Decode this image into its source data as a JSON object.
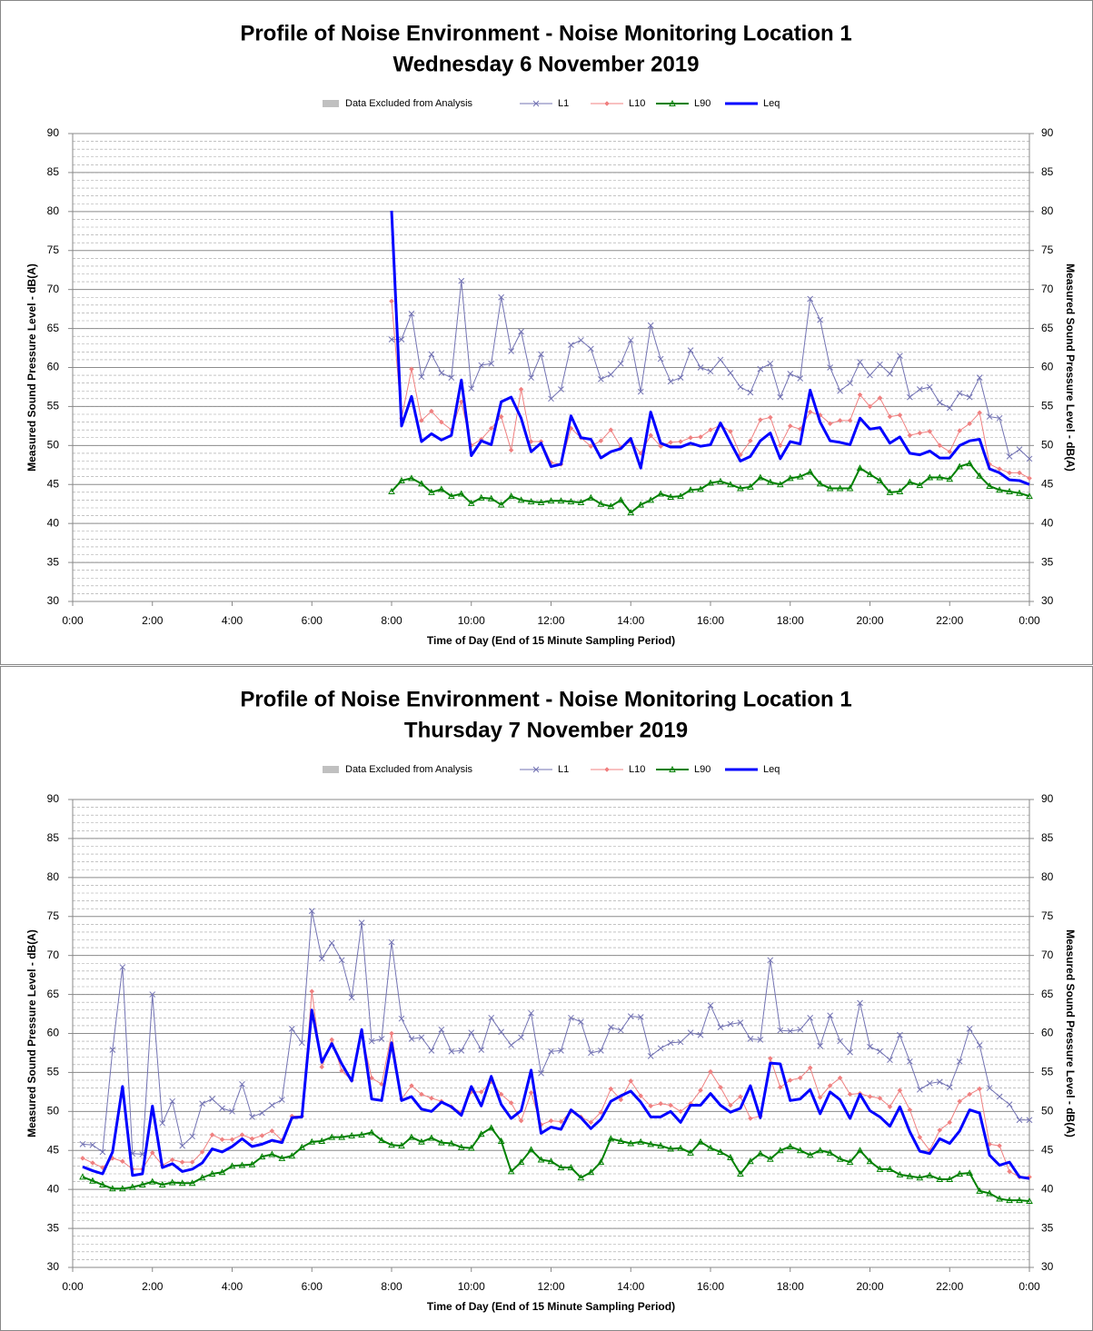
{
  "chart_data": [
    {
      "type": "line",
      "title": "Profile of Noise Environment - Noise Monitoring Location 1",
      "subtitle": "Wednesday 6 November 2019",
      "x_label": "Time of Day (End of 15 Minute Sampling Period)",
      "y_label": "Measured Sound Pressure Level - dB(A)",
      "y2_label": "Measured Sound Pressure Level - dB(A)",
      "excluded": {
        "name": "Data Excluded from Analysis",
        "color": "#c0c0c0"
      },
      "xlim": [
        0,
        24
      ],
      "xticks": [
        {
          "value": 0,
          "label": "0:00"
        },
        {
          "value": 2,
          "label": "2:00"
        },
        {
          "value": 4,
          "label": "4:00"
        },
        {
          "value": 6,
          "label": "6:00"
        },
        {
          "value": 8,
          "label": "8:00"
        },
        {
          "value": 10,
          "label": "10:00"
        },
        {
          "value": 12,
          "label": "12:00"
        },
        {
          "value": 14,
          "label": "14:00"
        },
        {
          "value": 16,
          "label": "16:00"
        },
        {
          "value": 18,
          "label": "18:00"
        },
        {
          "value": 20,
          "label": "20:00"
        },
        {
          "value": 22,
          "label": "22:00"
        },
        {
          "value": 24,
          "label": "0:00"
        }
      ],
      "ylim": [
        30,
        90
      ],
      "yticks": [
        30,
        35,
        40,
        45,
        50,
        55,
        60,
        65,
        70,
        75,
        80,
        85,
        90
      ],
      "y2lim": [
        30,
        90
      ],
      "y2ticks": [
        30,
        35,
        40,
        45,
        50,
        55,
        60,
        65,
        70,
        75,
        80,
        85,
        90
      ],
      "grid": true,
      "minor_grid_step": 1,
      "x": [
        8,
        8.25,
        8.5,
        8.75,
        9,
        9.25,
        9.5,
        9.75,
        10,
        10.25,
        10.5,
        10.75,
        11,
        11.25,
        11.5,
        11.75,
        12,
        12.25,
        12.5,
        12.75,
        13,
        13.25,
        13.5,
        13.75,
        14,
        14.25,
        14.5,
        14.75,
        15,
        15.25,
        15.5,
        15.75,
        16,
        16.25,
        16.5,
        16.75,
        17,
        17.25,
        17.5,
        17.75,
        18,
        18.25,
        18.5,
        18.75,
        19,
        19.25,
        19.5,
        19.75,
        20,
        20.25,
        20.5,
        20.75,
        21,
        21.25,
        21.5,
        21.75,
        22,
        22.25,
        22.5,
        22.75,
        23,
        23.25,
        23.5,
        23.75,
        24
      ],
      "series": [
        {
          "name": "L1",
          "color": "#7373b3",
          "marker": "x",
          "line_width": 1,
          "values": [
            63.6,
            63.6,
            66.9,
            58.8,
            61.7,
            59.3,
            58.7,
            71.1,
            57.3,
            60.3,
            60.5,
            69.0,
            62.1,
            64.6,
            58.7,
            61.7,
            56.0,
            57.2,
            62.9,
            63.5,
            62.4,
            58.5,
            59.1,
            60.5,
            63.5,
            56.9,
            65.4,
            61.1,
            58.2,
            58.7,
            62.2,
            60.0,
            59.5,
            61.0,
            59.3,
            57.5,
            56.8,
            59.8,
            60.5,
            56.2,
            59.2,
            58.6,
            68.8,
            66.1,
            60.0,
            57.0,
            58.0,
            60.7,
            59.0,
            60.4,
            59.2,
            61.5,
            56.2,
            57.2,
            57.5,
            55.5,
            54.8,
            56.7,
            56.2,
            58.7,
            53.7,
            53.5,
            48.6,
            49.5,
            48.3
          ]
        },
        {
          "name": "L10",
          "color": "#f08080",
          "marker": "diamond",
          "line_width": 1,
          "values": [
            68.5,
            53.5,
            59.8,
            53.2,
            54.4,
            53.0,
            52.0,
            55.6,
            50.0,
            50.8,
            52.2,
            53.7,
            49.4,
            57.2,
            50.5,
            50.5,
            47.8,
            47.6,
            52.2,
            51.0,
            49.9,
            50.6,
            52.0,
            49.8,
            50.5,
            49.0,
            51.3,
            49.9,
            50.4,
            50.5,
            51.0,
            51.1,
            52.0,
            52.6,
            51.8,
            48.8,
            50.6,
            53.3,
            53.6,
            50.0,
            52.5,
            52.1,
            54.3,
            53.9,
            52.8,
            53.2,
            53.2,
            56.5,
            55.0,
            56.1,
            53.7,
            53.9,
            51.3,
            51.6,
            51.8,
            50.0,
            49.2,
            51.9,
            52.8,
            54.2,
            47.6,
            47.0,
            46.5,
            46.5,
            45.8
          ]
        },
        {
          "name": "L90",
          "color": "#008000",
          "marker": "triangle",
          "line_width": 2,
          "values": [
            44.1,
            45.5,
            45.8,
            45.1,
            44.0,
            44.4,
            43.5,
            43.8,
            42.6,
            43.3,
            43.2,
            42.4,
            43.5,
            43.0,
            42.8,
            42.7,
            42.9,
            42.9,
            42.8,
            42.7,
            43.3,
            42.5,
            42.2,
            43.0,
            41.4,
            42.4,
            43.0,
            43.8,
            43.4,
            43.5,
            44.3,
            44.4,
            45.2,
            45.4,
            45.0,
            44.5,
            44.7,
            45.9,
            45.3,
            45.0,
            45.8,
            46.0,
            46.6,
            45.1,
            44.5,
            44.5,
            44.5,
            47.1,
            46.3,
            45.5,
            44.0,
            44.1,
            45.3,
            44.9,
            45.9,
            45.9,
            45.7,
            47.3,
            47.7,
            46.1,
            44.8,
            44.3,
            44.1,
            43.9,
            43.5
          ]
        },
        {
          "name": "Leq",
          "color": "#0000ff",
          "marker": "none",
          "line_width": 3,
          "values": [
            80.1,
            52.5,
            56.3,
            50.5,
            51.5,
            50.7,
            51.3,
            58.4,
            48.7,
            50.6,
            50.1,
            55.6,
            56.2,
            53.5,
            49.2,
            50.3,
            47.3,
            47.6,
            53.8,
            51.0,
            50.8,
            48.4,
            49.2,
            49.6,
            50.9,
            47.1,
            54.3,
            50.3,
            49.8,
            49.8,
            50.3,
            49.9,
            50.1,
            52.9,
            50.4,
            48.0,
            48.6,
            50.6,
            51.6,
            48.3,
            50.5,
            50.2,
            57.1,
            53.0,
            50.6,
            50.4,
            50.1,
            53.5,
            52.1,
            52.3,
            50.3,
            51.1,
            49.0,
            48.8,
            49.3,
            48.4,
            48.4,
            50.0,
            50.6,
            50.8,
            47.0,
            46.5,
            45.6,
            45.5,
            45.0
          ]
        }
      ]
    },
    {
      "type": "line",
      "title": "Profile of Noise Environment - Noise Monitoring Location 1",
      "subtitle": "Thursday 7 November 2019",
      "x_label": "Time of Day (End of 15 Minute Sampling Period)",
      "y_label": "Measured Sound Pressure Level - dB(A)",
      "y2_label": "Measured Sound Pressure Level - dB(A)",
      "excluded": {
        "name": "Data Excluded from Analysis",
        "color": "#c0c0c0"
      },
      "xlim": [
        0,
        24
      ],
      "xticks": [
        {
          "value": 0,
          "label": "0:00"
        },
        {
          "value": 2,
          "label": "2:00"
        },
        {
          "value": 4,
          "label": "4:00"
        },
        {
          "value": 6,
          "label": "6:00"
        },
        {
          "value": 8,
          "label": "8:00"
        },
        {
          "value": 10,
          "label": "10:00"
        },
        {
          "value": 12,
          "label": "12:00"
        },
        {
          "value": 14,
          "label": "14:00"
        },
        {
          "value": 16,
          "label": "16:00"
        },
        {
          "value": 18,
          "label": "18:00"
        },
        {
          "value": 20,
          "label": "20:00"
        },
        {
          "value": 22,
          "label": "22:00"
        },
        {
          "value": 24,
          "label": "0:00"
        }
      ],
      "ylim": [
        30,
        90
      ],
      "yticks": [
        30,
        35,
        40,
        45,
        50,
        55,
        60,
        65,
        70,
        75,
        80,
        85,
        90
      ],
      "y2lim": [
        30,
        90
      ],
      "y2ticks": [
        30,
        35,
        40,
        45,
        50,
        55,
        60,
        65,
        70,
        75,
        80,
        85,
        90
      ],
      "grid": true,
      "minor_grid_step": 1,
      "x": [
        0.25,
        0.5,
        0.75,
        1,
        1.25,
        1.5,
        1.75,
        2,
        2.25,
        2.5,
        2.75,
        3,
        3.25,
        3.5,
        3.75,
        4,
        4.25,
        4.5,
        4.75,
        5,
        5.25,
        5.5,
        5.75,
        6,
        6.25,
        6.5,
        6.75,
        7,
        7.25,
        7.5,
        7.75,
        8,
        8.25,
        8.5,
        8.75,
        9,
        9.25,
        9.5,
        9.75,
        10,
        10.25,
        10.5,
        10.75,
        11,
        11.25,
        11.5,
        11.75,
        12,
        12.25,
        12.5,
        12.75,
        13,
        13.25,
        13.5,
        13.75,
        14,
        14.25,
        14.5,
        14.75,
        15,
        15.25,
        15.5,
        15.75,
        16,
        16.25,
        16.5,
        16.75,
        17,
        17.25,
        17.5,
        17.75,
        18,
        18.25,
        18.5,
        18.75,
        19,
        19.25,
        19.5,
        19.75,
        20,
        20.25,
        20.5,
        20.75,
        21,
        21.25,
        21.5,
        21.75,
        22,
        22.25,
        22.5,
        22.75,
        23,
        23.25,
        23.5,
        23.75,
        24
      ],
      "series": [
        {
          "name": "L1",
          "color": "#7373b3",
          "marker": "x",
          "line_width": 1,
          "values": [
            45.8,
            45.7,
            44.8,
            57.9,
            68.5,
            44.6,
            44.5,
            65.0,
            48.5,
            51.3,
            45.6,
            46.8,
            51.0,
            51.6,
            50.4,
            50.0,
            53.5,
            49.3,
            49.8,
            50.8,
            51.5,
            60.6,
            58.8,
            75.7,
            69.6,
            71.6,
            69.4,
            64.6,
            74.2,
            59.0,
            59.3,
            71.7,
            61.9,
            59.3,
            59.5,
            57.8,
            60.5,
            57.7,
            57.8,
            60.1,
            57.9,
            62.0,
            60.2,
            58.5,
            59.5,
            62.6,
            54.9,
            57.7,
            57.8,
            62.0,
            61.5,
            57.5,
            57.8,
            60.8,
            60.4,
            62.2,
            62.1,
            57.1,
            58.1,
            58.8,
            58.9,
            60.1,
            59.8,
            63.6,
            60.8,
            61.2,
            61.4,
            59.3,
            59.2,
            69.4,
            60.4,
            60.3,
            60.5,
            62.0,
            58.4,
            62.3,
            59.0,
            57.6,
            63.9,
            58.3,
            57.7,
            56.6,
            59.8,
            56.4,
            52.8,
            53.6,
            53.8,
            53.1,
            56.4,
            60.6,
            58.5,
            53.0,
            51.9,
            50.9,
            48.9,
            48.9
          ]
        },
        {
          "name": "L10",
          "color": "#f08080",
          "marker": "diamond",
          "line_width": 1,
          "values": [
            44.0,
            43.4,
            42.8,
            44.0,
            43.6,
            42.6,
            42.6,
            44.7,
            43.1,
            43.8,
            43.5,
            43.5,
            44.8,
            47.0,
            46.4,
            46.4,
            47.0,
            46.5,
            46.9,
            47.5,
            46.3,
            49.4,
            49.4,
            65.4,
            55.7,
            59.2,
            55.2,
            54.0,
            60.0,
            54.3,
            53.5,
            60.0,
            51.6,
            53.3,
            52.2,
            51.7,
            51.3,
            50.6,
            49.9,
            52.5,
            52.5,
            53.8,
            52.2,
            51.1,
            48.8,
            52.4,
            48.3,
            48.8,
            48.7,
            50.0,
            49.3,
            48.6,
            49.9,
            52.9,
            51.5,
            53.9,
            52.0,
            50.7,
            51.0,
            50.8,
            50.0,
            51.0,
            52.7,
            55.1,
            53.1,
            50.8,
            51.9,
            49.1,
            49.4,
            56.8,
            53.1,
            54.0,
            54.3,
            55.6,
            51.8,
            53.3,
            54.3,
            52.2,
            52.3,
            51.9,
            51.7,
            50.6,
            52.7,
            50.2,
            46.7,
            45.0,
            47.6,
            48.6,
            51.3,
            52.2,
            52.9,
            45.8,
            45.6,
            42.3,
            41.6,
            41.6
          ]
        },
        {
          "name": "L90",
          "color": "#008000",
          "marker": "triangle",
          "line_width": 2,
          "values": [
            41.6,
            41.1,
            40.6,
            40.1,
            40.1,
            40.3,
            40.6,
            41.0,
            40.6,
            40.9,
            40.8,
            40.8,
            41.5,
            42.0,
            42.2,
            43.0,
            43.1,
            43.2,
            44.2,
            44.5,
            44.0,
            44.3,
            45.4,
            46.1,
            46.2,
            46.7,
            46.7,
            46.9,
            47.0,
            47.3,
            46.3,
            45.7,
            45.6,
            46.7,
            46.1,
            46.6,
            46.0,
            45.9,
            45.4,
            45.3,
            47.1,
            47.9,
            46.2,
            42.3,
            43.5,
            45.1,
            43.8,
            43.6,
            42.8,
            42.8,
            41.5,
            42.2,
            43.5,
            46.5,
            46.2,
            45.9,
            46.1,
            45.8,
            45.6,
            45.2,
            45.3,
            44.7,
            46.1,
            45.3,
            44.8,
            44.1,
            42.0,
            43.6,
            44.6,
            43.9,
            45.0,
            45.5,
            45.0,
            44.4,
            45.0,
            44.7,
            43.9,
            43.5,
            45.0,
            43.6,
            42.6,
            42.6,
            41.9,
            41.7,
            41.5,
            41.8,
            41.3,
            41.3,
            42.0,
            42.1,
            39.8,
            39.5,
            38.8,
            38.6,
            38.6,
            38.5
          ]
        },
        {
          "name": "Leq",
          "color": "#0000ff",
          "marker": "none",
          "line_width": 3,
          "values": [
            42.9,
            42.4,
            42.0,
            44.8,
            53.2,
            41.8,
            42.0,
            50.7,
            42.8,
            43.3,
            42.3,
            42.6,
            43.4,
            45.2,
            44.8,
            45.5,
            46.5,
            45.5,
            45.8,
            46.3,
            46.0,
            49.2,
            49.3,
            63.0,
            56.3,
            58.7,
            56.1,
            53.9,
            60.5,
            51.6,
            51.4,
            58.8,
            51.4,
            51.9,
            50.3,
            50.0,
            51.2,
            50.6,
            49.5,
            53.2,
            50.7,
            54.5,
            50.9,
            49.1,
            50.1,
            55.3,
            47.2,
            48.0,
            47.7,
            50.2,
            49.2,
            47.8,
            49.0,
            51.3,
            52.0,
            52.6,
            51.2,
            49.3,
            49.3,
            50.0,
            48.6,
            50.8,
            50.8,
            52.3,
            50.8,
            49.9,
            50.4,
            53.3,
            49.2,
            56.2,
            56.1,
            51.4,
            51.6,
            52.8,
            49.7,
            52.5,
            51.5,
            49.1,
            52.2,
            50.1,
            49.3,
            48.1,
            50.6,
            47.4,
            44.9,
            44.6,
            46.5,
            45.9,
            47.5,
            50.2,
            49.8,
            44.4,
            43.1,
            43.5,
            41.6,
            41.4
          ]
        }
      ]
    }
  ]
}
